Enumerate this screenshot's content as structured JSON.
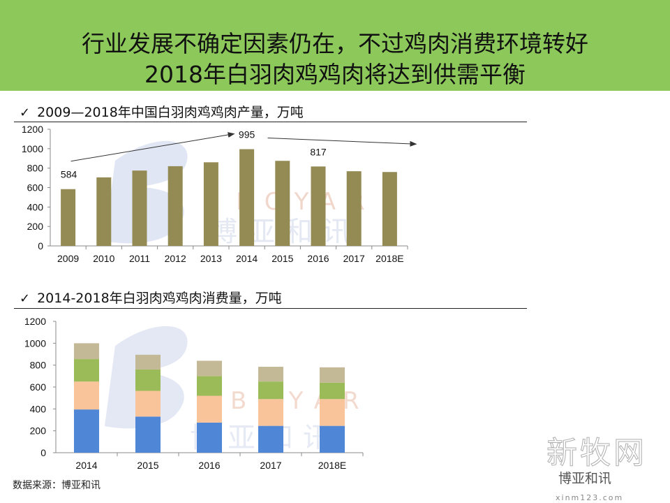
{
  "header": {
    "line1": "行业发展不确定因素仍在，不过鸡肉消费环境转好",
    "line2": "2018年白羽肉鸡鸡肉将达到供需平衡"
  },
  "sections": [
    {
      "check": "✓",
      "title": "2009—2018年中国白羽肉鸡鸡肉产量，万吨"
    },
    {
      "check": "✓",
      "title": "2014-2018年白羽肉鸡鸡肉消费量，万吨"
    }
  ],
  "source": "数据来源：博亚和讯",
  "watermark": {
    "logo_letters": "BOYAR",
    "logo_cn": "博亚和讯",
    "stamp_big": "新牧网",
    "stamp_small": "博亚和讯",
    "stamp_url": "xinm123.com"
  },
  "colors": {
    "header_bg": "#8cc85a",
    "bar_olive": "#948a54",
    "stack_blue": "#4f86d6",
    "stack_orange": "#f9c49a",
    "stack_green": "#9bbb59",
    "stack_tan": "#c4b996"
  },
  "chart_data": [
    {
      "type": "bar",
      "title": "2009—2018年中国白羽肉鸡鸡肉产量，万吨",
      "categories": [
        "2009",
        "2010",
        "2011",
        "2012",
        "2013",
        "2014",
        "2015",
        "2016",
        "2017",
        "2018E"
      ],
      "values": [
        584,
        705,
        775,
        820,
        860,
        995,
        875,
        817,
        768,
        760
      ],
      "data_labels": {
        "2009": "584",
        "2014": "995",
        "2016": "817"
      },
      "ylim": [
        0,
        1200
      ],
      "yticks": [
        0,
        200,
        400,
        600,
        800,
        1000,
        1200
      ],
      "annotations": [
        "arrow rising from 2009 to 2014",
        "arrow falling from 2014 to 2018E"
      ],
      "grid": false,
      "legend": "none"
    },
    {
      "type": "bar",
      "stacked": true,
      "title": "2014-2018年白羽肉鸡鸡肉消费量，万吨",
      "categories": [
        "2014",
        "2015",
        "2016",
        "2017",
        "2018E"
      ],
      "series": [
        {
          "values": [
            395,
            330,
            275,
            245,
            245
          ]
        },
        {
          "values": [
            255,
            235,
            245,
            245,
            245
          ]
        },
        {
          "values": [
            205,
            195,
            180,
            160,
            150
          ]
        },
        {
          "values": [
            145,
            135,
            140,
            135,
            140
          ]
        }
      ],
      "ylim": [
        0,
        1200
      ],
      "yticks": [
        0,
        200,
        400,
        600,
        800,
        1000,
        1200
      ],
      "grid": false,
      "legend": "none"
    }
  ]
}
